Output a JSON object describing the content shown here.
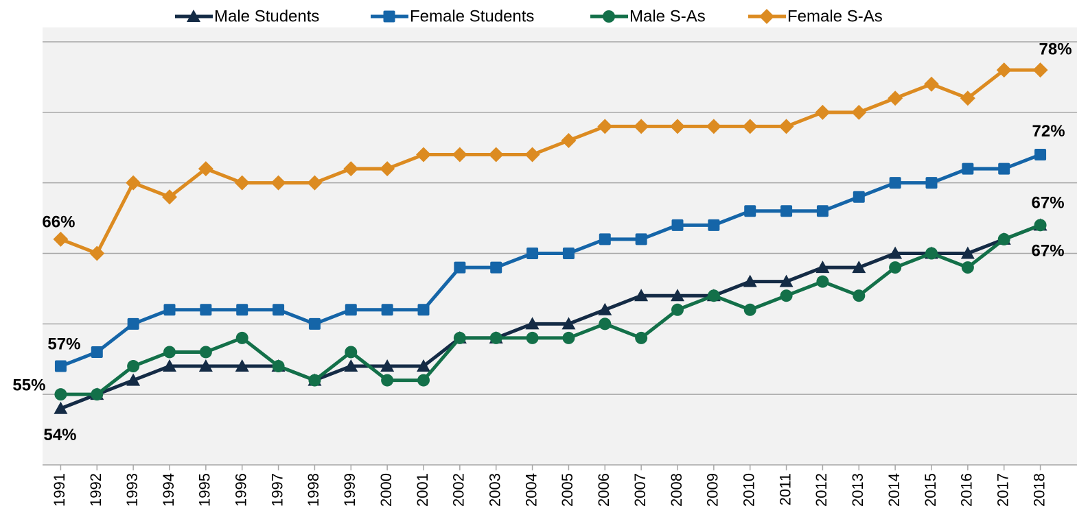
{
  "chart_data": {
    "type": "line",
    "categories": [
      "1991",
      "1992",
      "1993",
      "1994",
      "1995",
      "1996",
      "1997",
      "1998",
      "1999",
      "2000",
      "2001",
      "2002",
      "2003",
      "2004",
      "2005",
      "2006",
      "2007",
      "2008",
      "2009",
      "2010",
      "2011",
      "2012",
      "2013",
      "2014",
      "2015",
      "2016",
      "2017",
      "2018"
    ],
    "ylim": [
      50,
      80
    ],
    "yticks": [
      50,
      55,
      60,
      65,
      70,
      75,
      80
    ],
    "grid": true,
    "series": [
      {
        "name": "Male Students",
        "color": "#142b45",
        "marker": "triangle",
        "values": [
          54,
          55,
          56,
          57,
          57,
          57,
          57,
          56,
          57,
          57,
          57,
          59,
          59,
          60,
          60,
          61,
          62,
          62,
          62,
          63,
          63,
          64,
          64,
          65,
          65,
          65,
          66,
          67
        ],
        "value_labels": [
          "54%",
          null,
          null,
          null,
          null,
          null,
          null,
          null,
          null,
          null,
          null,
          null,
          null,
          null,
          null,
          null,
          null,
          null,
          null,
          null,
          null,
          null,
          null,
          null,
          null,
          null,
          null,
          "67%"
        ]
      },
      {
        "name": "Female Students",
        "color": "#1565a8",
        "marker": "square",
        "values": [
          57,
          58,
          60,
          61,
          61,
          61,
          61,
          60,
          61,
          61,
          61,
          64,
          64,
          65,
          65,
          66,
          66,
          67,
          67,
          68,
          68,
          68,
          69,
          70,
          70,
          71,
          71,
          72
        ],
        "value_labels": [
          "57%",
          null,
          null,
          null,
          null,
          null,
          null,
          null,
          null,
          null,
          null,
          null,
          null,
          null,
          null,
          null,
          null,
          null,
          null,
          null,
          null,
          null,
          null,
          null,
          null,
          null,
          null,
          "72%"
        ]
      },
      {
        "name": "Male S-As",
        "color": "#137049",
        "marker": "circle",
        "values": [
          55,
          55,
          57,
          58,
          58,
          59,
          57,
          56,
          58,
          56,
          56,
          59,
          59,
          59,
          59,
          60,
          59,
          61,
          62,
          61,
          62,
          63,
          62,
          64,
          65,
          64,
          66,
          67
        ],
        "value_labels": [
          "55%",
          null,
          null,
          null,
          null,
          null,
          null,
          null,
          null,
          null,
          null,
          null,
          null,
          null,
          null,
          null,
          null,
          null,
          null,
          null,
          null,
          null,
          null,
          null,
          null,
          null,
          null,
          "67%"
        ]
      },
      {
        "name": "Female S-As",
        "color": "#dc8b21",
        "marker": "diamond",
        "values": [
          66,
          65,
          70,
          69,
          71,
          70,
          70,
          70,
          71,
          71,
          72,
          72,
          72,
          72,
          73,
          74,
          74,
          74,
          74,
          74,
          74,
          75,
          75,
          76,
          77,
          76,
          78,
          78
        ],
        "value_labels": [
          "66%",
          null,
          null,
          null,
          null,
          null,
          null,
          null,
          null,
          null,
          null,
          null,
          null,
          null,
          null,
          null,
          null,
          null,
          null,
          null,
          null,
          null,
          null,
          null,
          null,
          null,
          null,
          "78%"
        ]
      }
    ]
  }
}
